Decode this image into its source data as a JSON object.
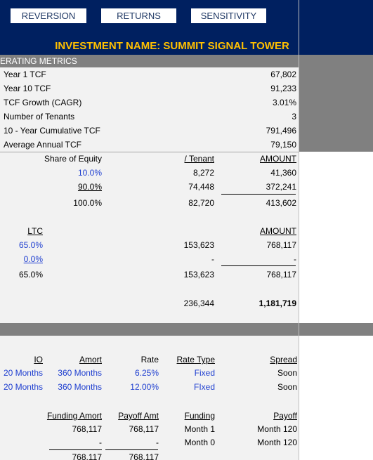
{
  "nav": [
    "REVERSION",
    "RETURNS",
    "SENSITIVITY"
  ],
  "title": "INVESTMENT NAME: SUMMIT SIGNAL TOWER",
  "section_label": "ERATING METRICS",
  "metrics": [
    {
      "label": "Year 1 TCF",
      "value": "67,802"
    },
    {
      "label": "Year 10 TCF",
      "value": "91,233"
    },
    {
      "label": "TCF Growth (CAGR)",
      "value": "3.01%"
    },
    {
      "label": "Number of Tenants",
      "value": "3"
    },
    {
      "label": "10 - Year Cumulative TCF",
      "value": "791,496"
    },
    {
      "label": "Average Annual TCF",
      "value": "79,150"
    }
  ],
  "equity": {
    "header": [
      "Share of Equity",
      "/ Tenant",
      "AMOUNT"
    ],
    "rows": [
      [
        "10.0%",
        "8,272",
        "41,360"
      ],
      [
        "90.0%",
        "74,448",
        "372,241"
      ]
    ],
    "total": [
      "100.0%",
      "82,720",
      "413,602"
    ]
  },
  "debt": {
    "header": [
      "LTC",
      "AMOUNT"
    ],
    "rows": [
      [
        "65.0%",
        "153,623",
        "768,117"
      ],
      [
        "0.0%",
        "-",
        "-"
      ]
    ],
    "total": [
      "65.0%",
      "153,623",
      "768,117"
    ]
  },
  "capital_total": [
    "236,344",
    "1,181,719"
  ],
  "loan_terms": {
    "header": [
      "IO",
      "Amort",
      "Rate",
      "Rate Type",
      "Spread"
    ],
    "rows": [
      [
        "20 Months",
        "360 Months",
        "6.25%",
        "Fixed",
        "Soon"
      ],
      [
        "20 Months",
        "360 Months",
        "12.00%",
        "FIxed",
        "Soon"
      ]
    ]
  },
  "funding": {
    "header": [
      "Funding Amort",
      "Payoff Amt",
      "Funding",
      "Payoff"
    ],
    "rows": [
      [
        "768,117",
        "768,117",
        "Month 1",
        "Month 120"
      ],
      [
        "-",
        "-",
        "Month 0",
        "Month 120"
      ],
      [
        "768,117",
        "768,117"
      ]
    ]
  }
}
